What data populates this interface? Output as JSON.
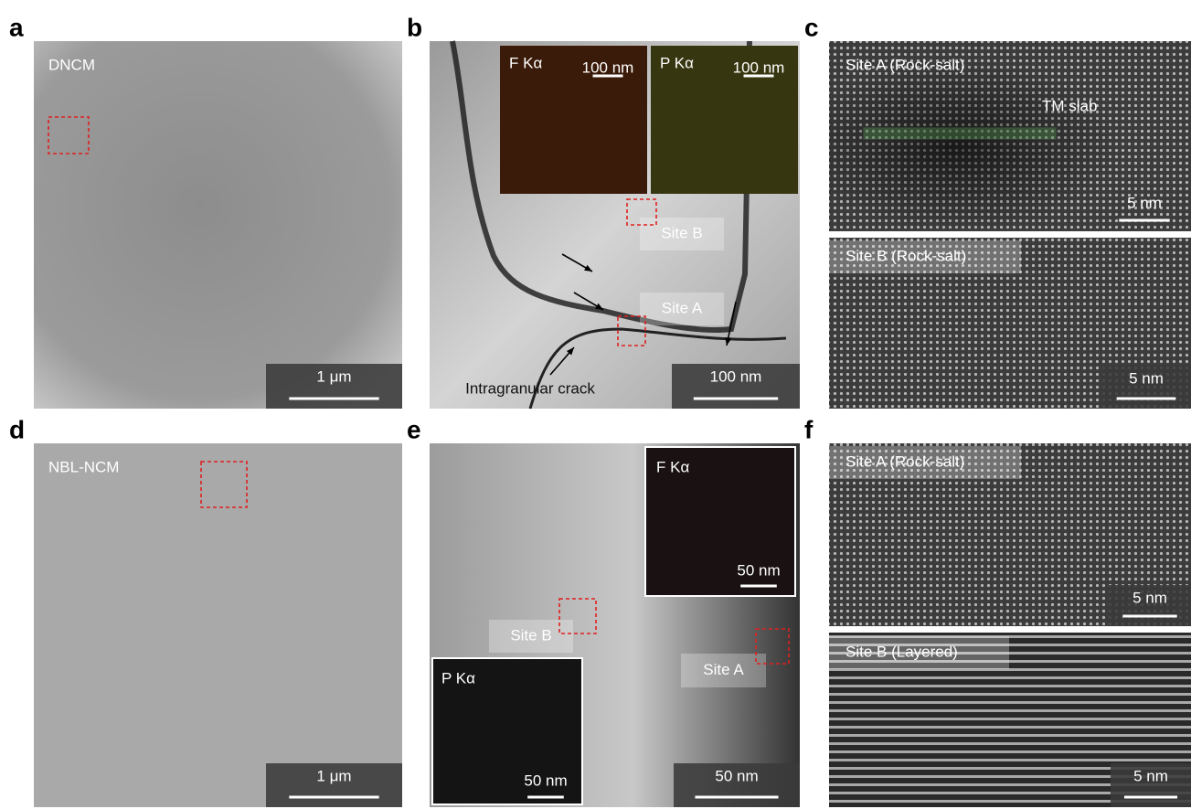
{
  "panels": [
    {
      "letter": "a",
      "sample": "DNCM",
      "scale_bar": "1 μm"
    },
    {
      "letter": "b",
      "insets": [
        {
          "element": "F Kα",
          "scale_bar": "100 nm"
        },
        {
          "element": "P Kα",
          "scale_bar": "100 nm"
        }
      ],
      "sites": [
        "Site B",
        "Site A"
      ],
      "scale_bar": "100 nm",
      "annotation": "Intragranular crack"
    },
    {
      "letter": "c",
      "images": [
        {
          "site": "Site A (Rock-salt)",
          "annotation": "TM slab",
          "scale_bar": "5 nm"
        },
        {
          "site": "Site B (Rock-salt)",
          "scale_bar": "5 nm"
        }
      ]
    },
    {
      "letter": "d",
      "sample": "NBL-NCM",
      "scale_bar": "1 μm"
    },
    {
      "letter": "e",
      "insets": [
        {
          "element": "F Kα",
          "scale_bar": "50 nm"
        },
        {
          "element": "P Kα",
          "scale_bar": "50 nm"
        }
      ],
      "sites": [
        "Site B",
        "Site A"
      ],
      "scale_bar": "50 nm"
    },
    {
      "letter": "f",
      "images": [
        {
          "site": "Site A (Rock-salt)",
          "scale_bar": "5 nm"
        },
        {
          "site": "Site B (Layered)",
          "scale_bar": "5 nm"
        }
      ]
    }
  ]
}
